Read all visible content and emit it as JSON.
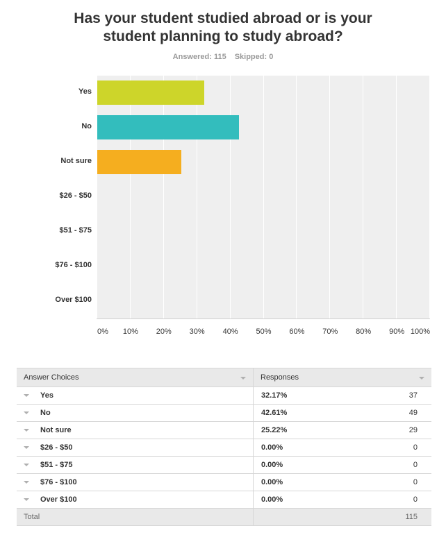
{
  "header": {
    "title_line1": "Has your student studied abroad or is your",
    "title_line2": "student planning to study abroad?",
    "answered_label": "Answered: 115",
    "skipped_label": "Skipped: 0"
  },
  "colors": {
    "Yes": "#cdd52a",
    "No": "#33bdbd",
    "Not sure": "#f5ae1f"
  },
  "chart_data": {
    "type": "bar",
    "orientation": "horizontal",
    "categories": [
      "Yes",
      "No",
      "Not sure",
      "$26 - $50",
      "$51 - $75",
      "$76 - $100",
      "Over $100"
    ],
    "values": [
      32.17,
      42.61,
      25.22,
      0,
      0,
      0,
      0
    ],
    "xlim": [
      0,
      100
    ],
    "x_ticks": [
      "0%",
      "10%",
      "20%",
      "30%",
      "40%",
      "50%",
      "60%",
      "70%",
      "80%",
      "90%",
      "100%"
    ],
    "grid": true
  },
  "table": {
    "headers": {
      "choices": "Answer Choices",
      "responses": "Responses"
    },
    "rows": [
      {
        "choice": "Yes",
        "percent": "32.17%",
        "count": "37"
      },
      {
        "choice": "No",
        "percent": "42.61%",
        "count": "49"
      },
      {
        "choice": "Not sure",
        "percent": "25.22%",
        "count": "29"
      },
      {
        "choice": "$26 - $50",
        "percent": "0.00%",
        "count": "0"
      },
      {
        "choice": "$51 - $75",
        "percent": "0.00%",
        "count": "0"
      },
      {
        "choice": "$76 - $100",
        "percent": "0.00%",
        "count": "0"
      },
      {
        "choice": "Over $100",
        "percent": "0.00%",
        "count": "0"
      }
    ],
    "total_label": "Total",
    "total_value": "115"
  }
}
